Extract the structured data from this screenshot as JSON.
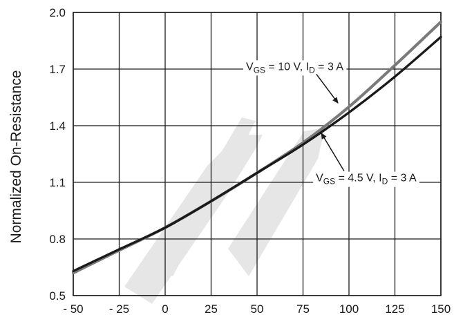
{
  "chart_data": {
    "type": "line",
    "title": "",
    "xlabel": "",
    "ylabel": "Normalized On-Resistance",
    "xlim": [
      -50,
      150
    ],
    "ylim": [
      0.5,
      2.0
    ],
    "xticks": [
      -50,
      -25,
      0,
      25,
      50,
      75,
      100,
      125,
      150
    ],
    "xtick_labels": [
      "- 50",
      "- 25",
      "0",
      "25",
      "50",
      "75",
      "100",
      "125",
      "150"
    ],
    "yticks": [
      0.5,
      0.8,
      1.1,
      1.4,
      1.7,
      2.0
    ],
    "ytick_labels": [
      "0.5",
      "0.8",
      "1.1",
      "1.4",
      "1.7",
      "2.0"
    ],
    "grid": true,
    "series": [
      {
        "name": "V_GS = 10 V, I_D = 3 A",
        "color": "#7a7a7a",
        "x": [
          -50,
          -25,
          0,
          25,
          50,
          75,
          100,
          125,
          150
        ],
        "y": [
          0.62,
          0.74,
          0.86,
          1.0,
          1.15,
          1.31,
          1.5,
          1.72,
          1.95
        ]
      },
      {
        "name": "V_GS = 4.5 V, I_D = 3 A",
        "color": "#1a1a1a",
        "x": [
          -50,
          -25,
          0,
          25,
          50,
          75,
          100,
          125,
          150
        ],
        "y": [
          0.63,
          0.745,
          0.86,
          1.0,
          1.15,
          1.3,
          1.47,
          1.66,
          1.87
        ]
      }
    ],
    "annotations": [
      {
        "series": 0,
        "label_main": "V",
        "label_sub": "GS",
        "label_mid": " = 10 V, I",
        "label_sub2": "D",
        "label_end": " = 3 A",
        "text_at": [
          44,
          1.695
        ],
        "arrow_to": [
          94,
          1.52
        ]
      },
      {
        "series": 1,
        "label_main": "V",
        "label_sub": "GS",
        "label_mid": " = 4.5 V, I",
        "label_sub2": "D",
        "label_end": " = 3 A",
        "text_at": [
          82,
          1.105
        ],
        "arrow_to": [
          85,
          1.36
        ]
      }
    ],
    "watermark_color": "#e6e6e6"
  }
}
